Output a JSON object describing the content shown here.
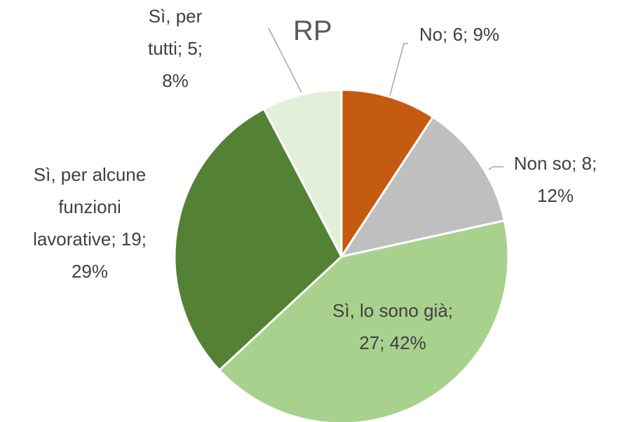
{
  "chart_data": {
    "type": "pie",
    "title": "RP",
    "categories": [
      "No",
      "Non so",
      "Sì, lo sono già",
      "Sì, per alcune funzioni lavorative",
      "Sì, per tutti"
    ],
    "values": [
      6,
      8,
      27,
      19,
      5
    ],
    "value_labels": [
      "No; 6; 9%",
      "Non so; 8; 12%",
      "Sì, lo sono già; 27; 42%",
      "Sì, per alcune funzioni lavorative; 19; 29%",
      "Sì, per tutti; 5; 8%"
    ],
    "colors": [
      "#c55a11",
      "#bfbfbf",
      "#a9d18e",
      "#548235",
      "#e2f0d9"
    ]
  }
}
